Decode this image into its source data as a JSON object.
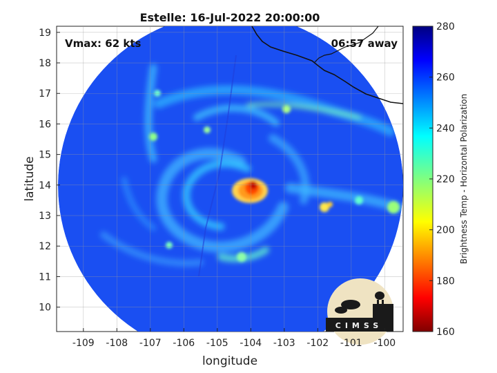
{
  "chart_data": {
    "type": "heatmap",
    "title": "Estelle: 16-Jul-2022 20:00:00",
    "xlabel": "longitude",
    "ylabel": "latitude",
    "xlim": [
      -109.8,
      -99.45
    ],
    "ylim": [
      9.2,
      19.2
    ],
    "x_ticks": [
      -109,
      -108,
      -107,
      -106,
      -105,
      -104,
      -103,
      -102,
      -101,
      -100
    ],
    "y_ticks": [
      10,
      11,
      12,
      13,
      14,
      15,
      16,
      17,
      18,
      19
    ],
    "grid": true,
    "annotations": {
      "vmax": "Vmax: 62 kts",
      "time_away": "06:57 away"
    },
    "colorbar": {
      "label": "Brightness Temp - Horizontal Polarization",
      "range": [
        160,
        280
      ],
      "ticks": [
        160,
        180,
        200,
        220,
        240,
        260,
        280
      ],
      "colormap": "jet"
    },
    "storm_center": {
      "lon": -103.95,
      "lat": 13.9
    },
    "min_brightness_temp": 170,
    "background_brightness_temp": 265,
    "logo": "CIMSS"
  }
}
